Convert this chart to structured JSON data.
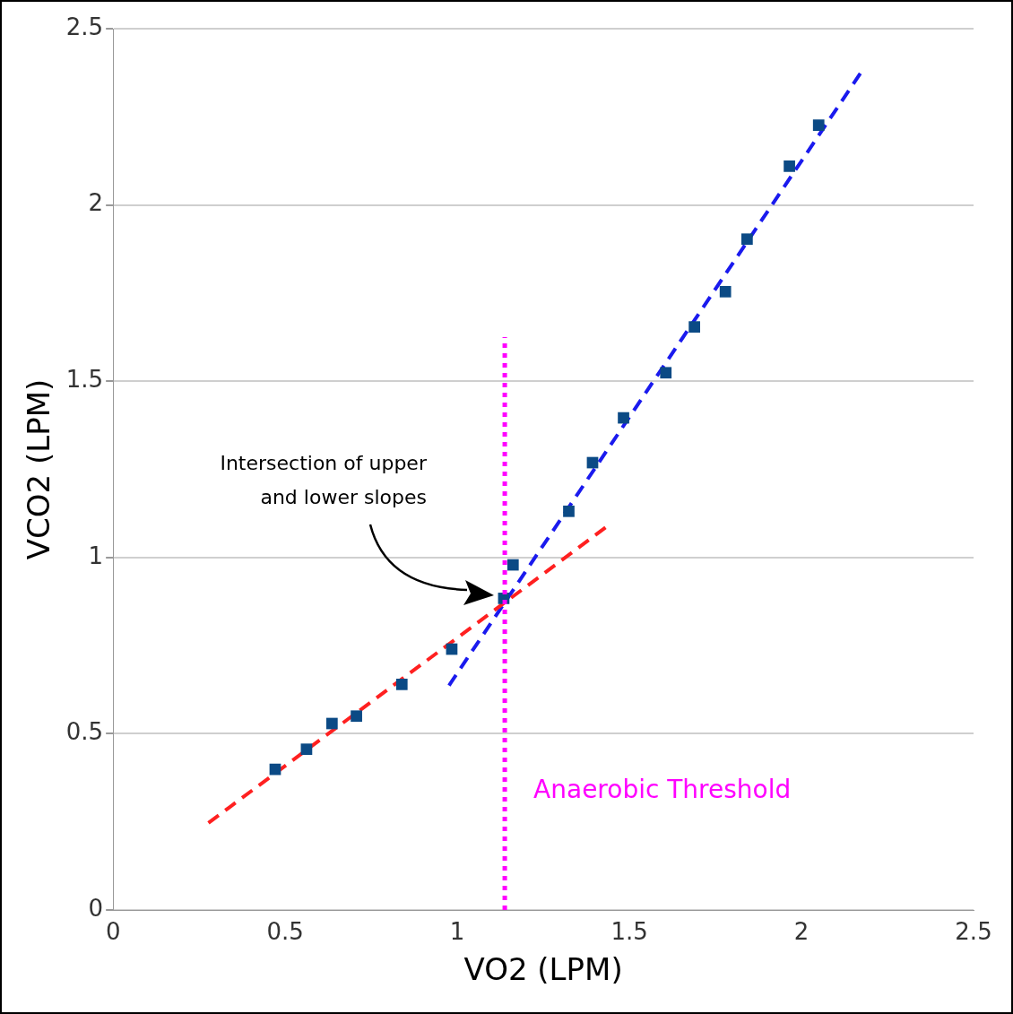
{
  "chart_data": {
    "type": "scatter",
    "xlabel": "VO2 (LPM)",
    "ylabel": "VCO2 (LPM)",
    "xlim": [
      0,
      2.5
    ],
    "xticks": [
      0,
      0.5,
      1,
      1.5,
      2,
      2.5
    ],
    "ylim": [
      0,
      2.5
    ],
    "yticks": [
      0,
      0.5,
      1,
      1.5,
      2,
      2.5
    ],
    "grid": "y",
    "legend": false,
    "series": [
      {
        "type": "line",
        "color": "#ff2020",
        "line_style": "dashed",
        "marker": "none",
        "x": [
          0.277,
          1.431
        ],
        "values": [
          0.247,
          1.085
        ]
      },
      {
        "type": "line",
        "color": "#1a1aee",
        "line_style": "dashed",
        "marker": "none",
        "x": [
          0.976,
          2.171
        ],
        "values": [
          0.637,
          2.373
        ]
      },
      {
        "type": "scatter",
        "color": "#0b4a85",
        "marker": "square",
        "x": [
          0.471,
          0.562,
          0.636,
          0.707,
          0.839,
          0.984,
          1.135,
          1.162,
          1.324,
          1.393,
          1.483,
          1.606,
          1.689,
          1.779,
          1.842,
          1.965,
          2.05
        ],
        "values": [
          0.399,
          0.456,
          0.529,
          0.55,
          0.64,
          0.74,
          0.884,
          0.979,
          1.131,
          1.269,
          1.396,
          1.524,
          1.654,
          1.754,
          1.903,
          2.11,
          2.226
        ]
      }
    ],
    "ref_lines": [
      {
        "axis": "x",
        "value": 1.138,
        "label": "Anaerobic Threshold",
        "color": "#ff00ff",
        "line_style": "dotted"
      }
    ],
    "annotations": [
      "Intersection of upper and lower slopes"
    ]
  }
}
